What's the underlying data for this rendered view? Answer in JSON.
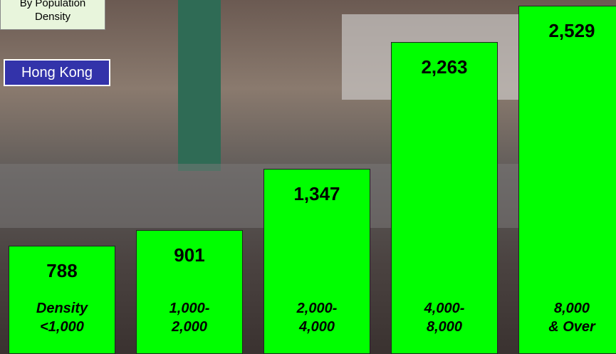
{
  "chart_data": {
    "type": "bar",
    "title": "By Population Density",
    "subtitle": "Hong Kong",
    "categories": [
      "Density\n<1,000",
      "1,000-\n2,000",
      "2,000-\n4,000",
      "4,000-\n8,000",
      "8,000\n& Over"
    ],
    "values": [
      788,
      901,
      1347,
      2263,
      2529
    ],
    "value_labels": [
      "788",
      "901",
      "1,347",
      "2,263",
      "2,529"
    ],
    "color": "#00ff00",
    "ylim": [
      0,
      2570
    ]
  }
}
